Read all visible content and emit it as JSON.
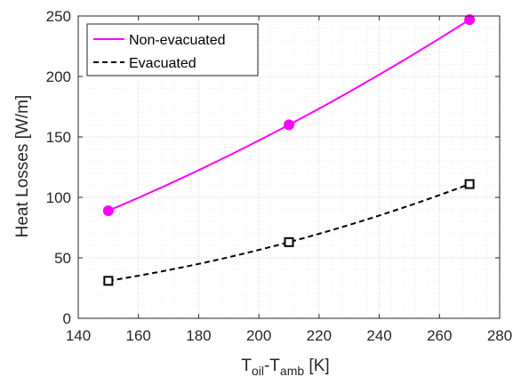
{
  "chart_data": {
    "type": "line",
    "xlabel": {
      "main": "T",
      "sub1": "oil",
      "sep": "-T",
      "sub2": "amb",
      "unit": " [K]"
    },
    "ylabel": "Heat Losses [W/m]",
    "xlim": [
      140,
      280
    ],
    "ylim": [
      0,
      250
    ],
    "xticks": [
      140,
      160,
      180,
      200,
      220,
      240,
      260,
      280
    ],
    "yticks": [
      0,
      50,
      100,
      150,
      200,
      250
    ],
    "grid": "major and minor (dotted)",
    "legend_position": "top-left",
    "series": [
      {
        "name": "Non-evacuated",
        "color": "#ff00ff",
        "line_style": "solid",
        "marker": "filled-circle",
        "x": [
          150,
          210,
          270
        ],
        "y": [
          89,
          160,
          247
        ]
      },
      {
        "name": "Evacuated",
        "color": "#000000",
        "line_style": "dashed",
        "marker": "open-square",
        "x": [
          150,
          210,
          270
        ],
        "y": [
          31,
          63,
          111
        ]
      }
    ]
  }
}
